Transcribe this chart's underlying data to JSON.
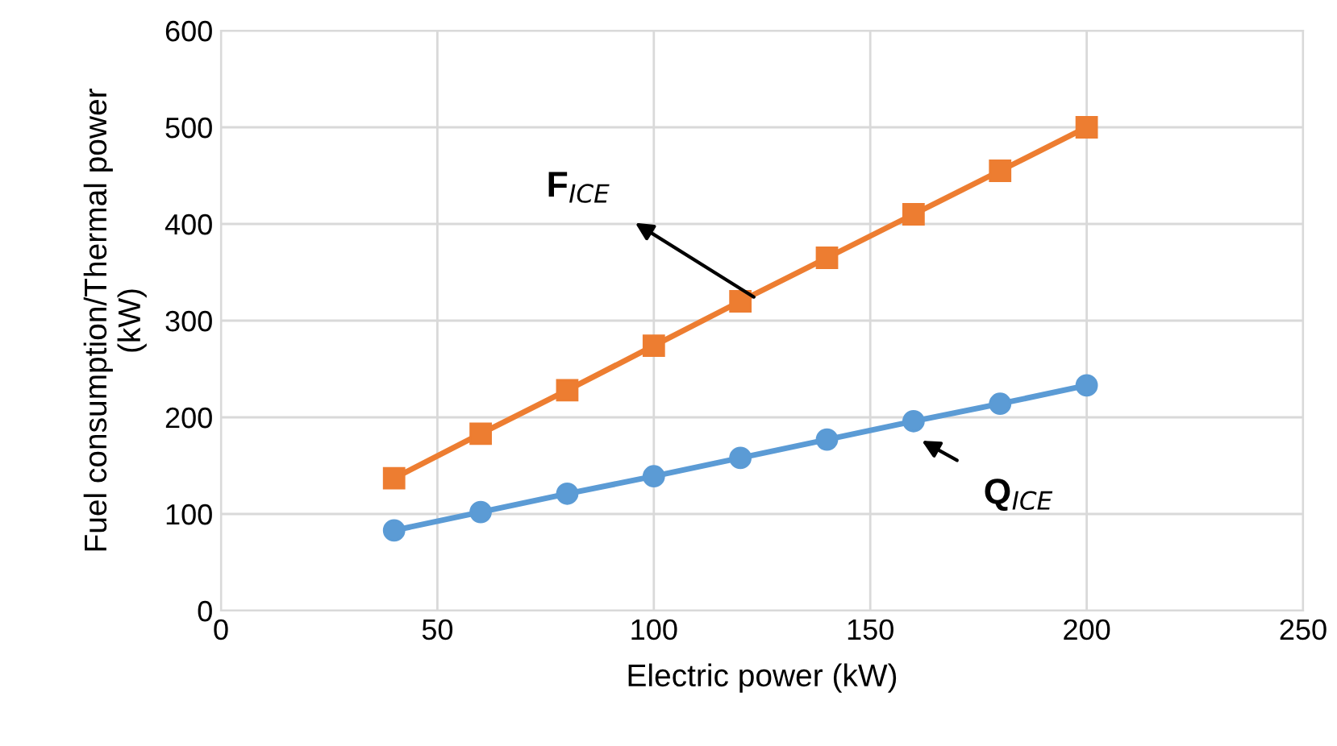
{
  "chart_data": {
    "type": "line",
    "xlabel": "Electric power (kW)",
    "ylabel": "Fuel consumption/Thermal power\n(kW)",
    "x": [
      40,
      60,
      80,
      100,
      120,
      140,
      160,
      180,
      200
    ],
    "series": [
      {
        "color": "#ed7d31",
        "marker": "square",
        "values": [
          137,
          183,
          228,
          274,
          320,
          365,
          410,
          455,
          500
        ]
      },
      {
        "color": "#5b9bd5",
        "marker": "circle",
        "values": [
          83,
          102,
          121,
          139,
          158,
          177,
          196,
          214,
          233
        ]
      }
    ],
    "annotations": [
      {
        "text": "F$_{ICE}$",
        "x": 124,
        "y": 322
      },
      {
        "text": "Q$_{ICE}$",
        "x": 161,
        "y": 178
      }
    ],
    "xlim": [
      0,
      250
    ],
    "xticks": [
      0,
      50,
      100,
      150,
      200,
      250
    ],
    "ylim": [
      0,
      600
    ],
    "yticks": [
      0,
      100,
      200,
      300,
      400,
      500,
      600
    ],
    "grid": true,
    "line_style": "solid",
    "legend": false
  }
}
